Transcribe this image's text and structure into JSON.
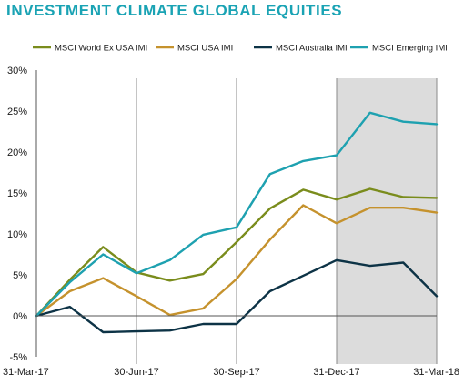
{
  "title": "INVESTMENT CLIMATE GLOBAL EQUITIES",
  "chart_data": {
    "type": "line",
    "title": "INVESTMENT CLIMATE GLOBAL EQUITIES",
    "xlabel": "",
    "ylabel": "",
    "ylim": [
      -5,
      30
    ],
    "y_ticks": [
      "-5%",
      "0%",
      "5%",
      "10%",
      "15%",
      "20%",
      "25%",
      "30%"
    ],
    "x_points": 13,
    "x_tick_labels": [
      {
        "index": 0,
        "label": "31-Mar-17"
      },
      {
        "index": 3,
        "label": "30-Jun-17"
      },
      {
        "index": 6,
        "label": "30-Sep-17"
      },
      {
        "index": 9,
        "label": "31-Dec-17"
      },
      {
        "index": 12,
        "label": "31-Mar-18"
      }
    ],
    "shaded_region": {
      "from_index": 9,
      "to_index": 12,
      "color": "#dcdcdc"
    },
    "legend_position": "top",
    "series": [
      {
        "name": "MSCI World Ex USA IMI",
        "color": "#7a8c1c",
        "values": [
          0,
          4.4,
          8.4,
          5.3,
          4.3,
          5.1,
          9.0,
          13.1,
          15.4,
          14.2,
          15.5,
          14.5,
          14.4
        ]
      },
      {
        "name": "MSCI USA IMI",
        "color": "#c5922d",
        "values": [
          0,
          3.0,
          4.6,
          2.4,
          0.1,
          0.9,
          4.5,
          9.3,
          13.5,
          11.3,
          13.2,
          13.2,
          12.6
        ]
      },
      {
        "name": "MSCI Australia IMI",
        "color": "#0d3346",
        "values": [
          0,
          1.1,
          -2.0,
          -1.9,
          -1.8,
          -1.0,
          -1.0,
          3.0,
          4.9,
          6.8,
          6.1,
          6.5,
          2.4
        ]
      },
      {
        "name": "MSCI Emerging IMI",
        "color": "#1ea1b0",
        "values": [
          0,
          4.1,
          7.5,
          5.2,
          6.8,
          9.9,
          10.8,
          17.3,
          18.9,
          19.6,
          24.8,
          23.7,
          23.4
        ]
      }
    ]
  }
}
